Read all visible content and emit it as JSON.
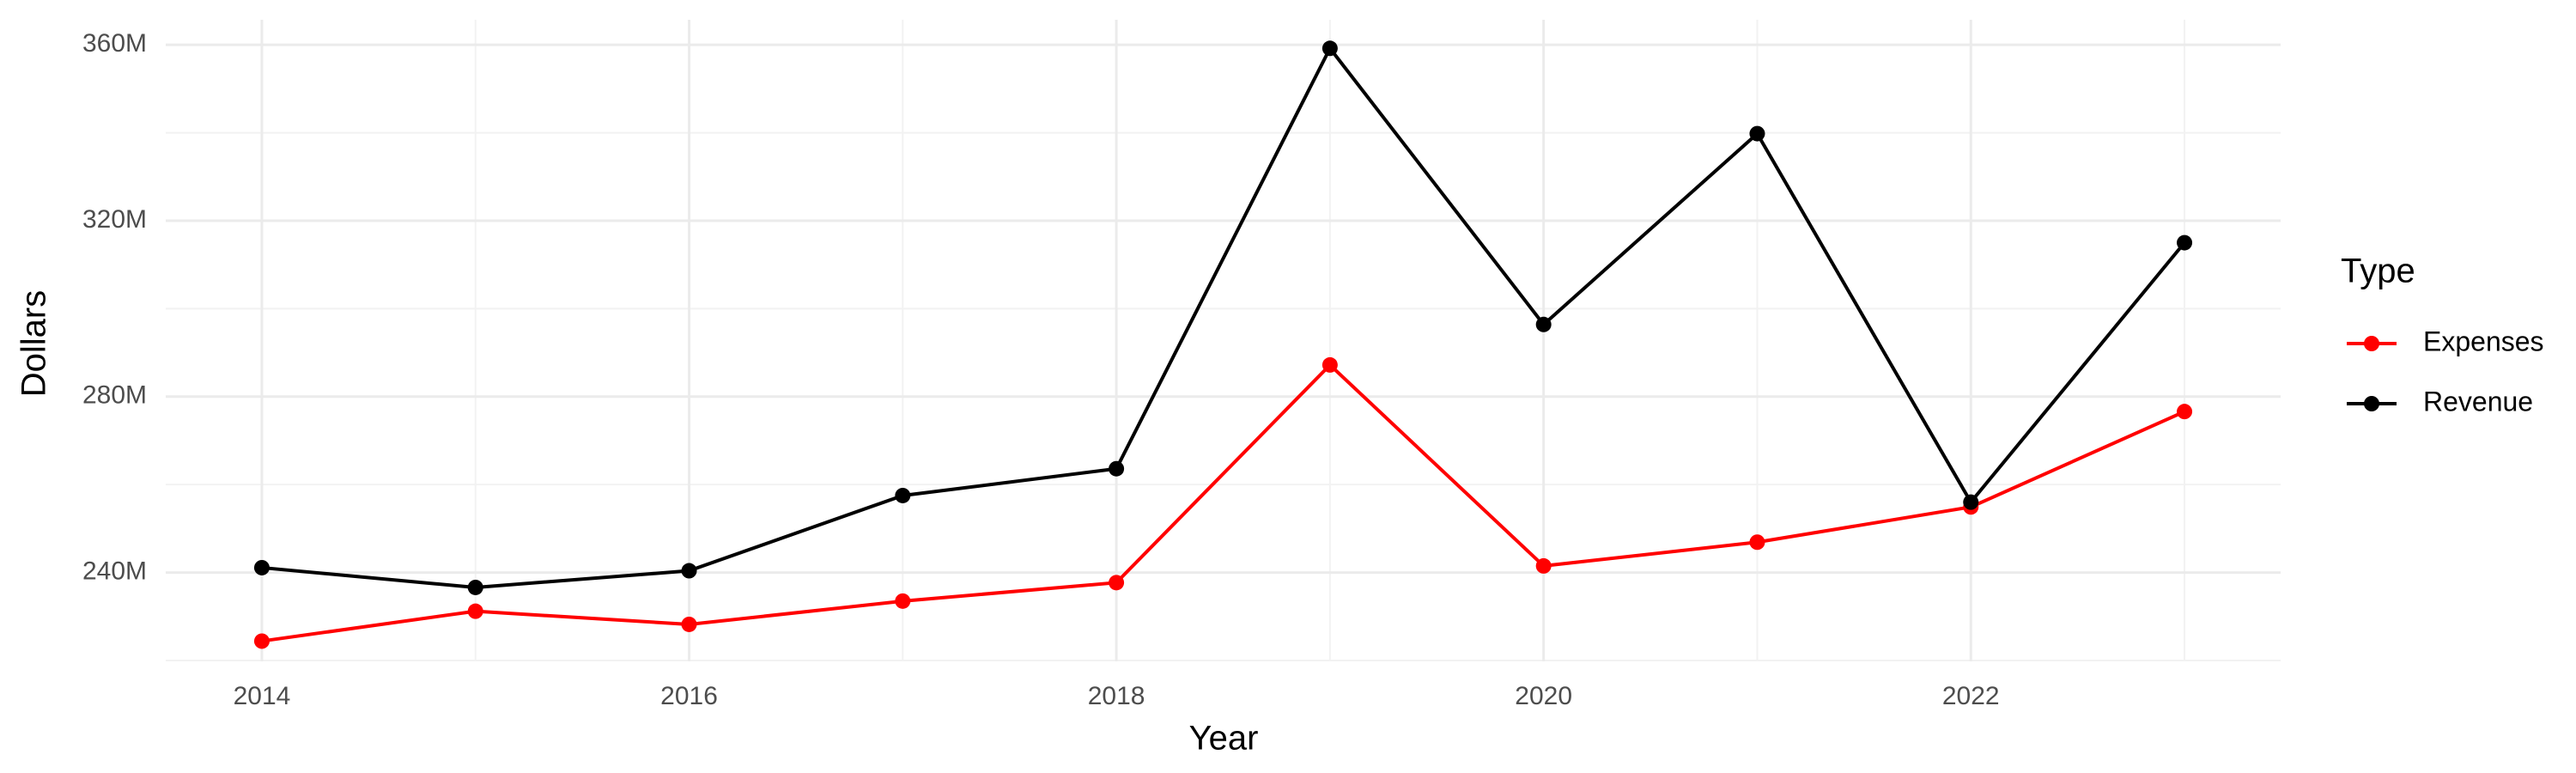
{
  "chart_data": {
    "type": "line",
    "x_label": "Year",
    "y_label": "Dollars",
    "legend_title": "Type",
    "legend_position": "right",
    "grid": true,
    "x": [
      2014,
      2015,
      2016,
      2017,
      2018,
      2019,
      2020,
      2021,
      2022,
      2023
    ],
    "series": [
      {
        "name": "Expenses",
        "color": "#ff0000",
        "values": [
          224.4,
          231.2,
          228.2,
          233.5,
          237.7,
          287.2,
          241.5,
          246.9,
          254.9,
          276.6
        ]
      },
      {
        "name": "Revenue",
        "color": "#000000",
        "values": [
          241.1,
          236.6,
          240.4,
          257.5,
          263.6,
          359.2,
          296.4,
          339.8,
          256.0,
          315.0
        ]
      }
    ],
    "xlim": [
      2013.55,
      2023.45
    ],
    "xticks": [
      2014,
      2016,
      2018,
      2020,
      2022
    ],
    "ylim": [
      219.8,
      365.7
    ],
    "yticks": [
      {
        "value": 240,
        "label": "240M"
      },
      {
        "value": 280,
        "label": "280M"
      },
      {
        "value": 320,
        "label": "320M"
      },
      {
        "value": 360,
        "label": "360M"
      }
    ]
  }
}
